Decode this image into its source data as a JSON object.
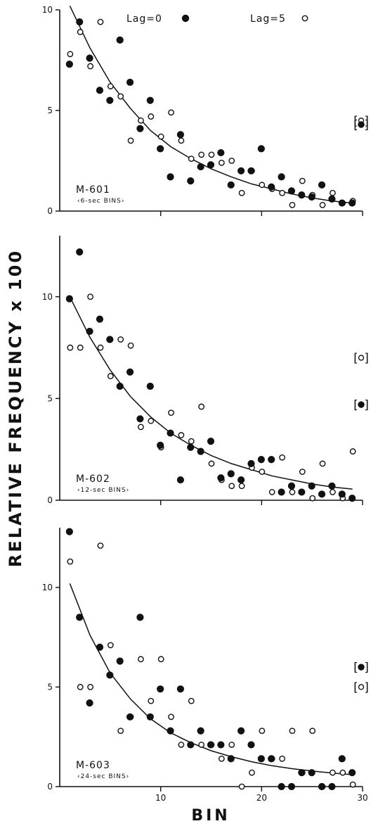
{
  "chart_data": {
    "type": "scatter",
    "ylabel": "RELATIVE FREQUENCY x 100",
    "xlabel": "BIN",
    "legend": [
      {
        "label": "Lag=0",
        "marker": "filled-circle"
      },
      {
        "label": "Lag=5",
        "marker": "open-circle"
      }
    ],
    "x_ticks": [
      "10",
      "20",
      "30"
    ],
    "xlim": [
      0,
      30
    ],
    "panels": [
      {
        "label": "M-601",
        "sublabel": "‹6-sec BINS›",
        "ylim": [
          0,
          10
        ],
        "y_ticks": [
          "0",
          "5",
          "10"
        ],
        "side_marker": {
          "bracket_text": "[°]",
          "open": 4.5,
          "filled": 4.3
        },
        "lag0": [
          [
            1,
            7.3
          ],
          [
            2,
            9.4
          ],
          [
            3,
            7.6
          ],
          [
            4,
            6.0
          ],
          [
            5,
            5.5
          ],
          [
            6,
            8.5
          ],
          [
            7,
            6.4
          ],
          [
            8,
            4.1
          ],
          [
            9,
            5.5
          ],
          [
            10,
            3.1
          ],
          [
            11,
            1.7
          ],
          [
            12,
            3.8
          ],
          [
            13,
            1.5
          ],
          [
            14,
            2.2
          ],
          [
            15,
            2.3
          ],
          [
            16,
            2.9
          ],
          [
            17,
            1.3
          ],
          [
            18,
            2.0
          ],
          [
            19,
            2.0
          ],
          [
            20,
            3.1
          ],
          [
            21,
            1.2
          ],
          [
            22,
            1.7
          ],
          [
            23,
            1.0
          ],
          [
            24,
            0.8
          ],
          [
            25,
            0.7
          ],
          [
            26,
            1.3
          ],
          [
            27,
            0.6
          ],
          [
            28,
            0.4
          ],
          [
            29,
            0.4
          ]
        ],
        "lag5": [
          [
            1,
            7.8
          ],
          [
            2,
            8.9
          ],
          [
            3,
            7.2
          ],
          [
            4,
            9.4
          ],
          [
            5,
            6.2
          ],
          [
            6,
            5.7
          ],
          [
            7,
            3.5
          ],
          [
            8,
            4.5
          ],
          [
            9,
            4.7
          ],
          [
            10,
            3.7
          ],
          [
            11,
            4.9
          ],
          [
            12,
            3.5
          ],
          [
            13,
            2.6
          ],
          [
            14,
            2.8
          ],
          [
            15,
            2.8
          ],
          [
            16,
            2.4
          ],
          [
            17,
            2.5
          ],
          [
            18,
            0.9
          ],
          [
            19,
            2.0
          ],
          [
            20,
            1.3
          ],
          [
            21,
            1.1
          ],
          [
            22,
            0.9
          ],
          [
            23,
            0.3
          ],
          [
            24,
            1.5
          ],
          [
            25,
            0.8
          ],
          [
            26,
            0.3
          ],
          [
            27,
            0.9
          ],
          [
            28,
            0.4
          ],
          [
            29,
            0.5
          ]
        ],
        "fit": [
          [
            1,
            10.2
          ],
          [
            3,
            8.1
          ],
          [
            5,
            6.4
          ],
          [
            7,
            5.1
          ],
          [
            9,
            4.0
          ],
          [
            11,
            3.2
          ],
          [
            13,
            2.6
          ],
          [
            15,
            2.1
          ],
          [
            17,
            1.7
          ],
          [
            19,
            1.35
          ],
          [
            21,
            1.1
          ],
          [
            23,
            0.85
          ],
          [
            25,
            0.65
          ],
          [
            27,
            0.5
          ],
          [
            29,
            0.4
          ]
        ]
      },
      {
        "label": "M-602",
        "sublabel": "‹12-sec BINS›",
        "ylim": [
          0,
          13
        ],
        "y_ticks": [
          "0",
          "5",
          "10"
        ],
        "side_marker": {
          "bracket_text": "[°]",
          "open": 7.0,
          "filled": 4.7
        },
        "lag0": [
          [
            1,
            9.9
          ],
          [
            2,
            12.2
          ],
          [
            3,
            8.3
          ],
          [
            4,
            8.9
          ],
          [
            5,
            7.9
          ],
          [
            6,
            5.6
          ],
          [
            7,
            6.3
          ],
          [
            8,
            4.0
          ],
          [
            9,
            5.6
          ],
          [
            10,
            2.7
          ],
          [
            11,
            3.3
          ],
          [
            12,
            1.0
          ],
          [
            13,
            2.6
          ],
          [
            14,
            2.4
          ],
          [
            15,
            2.9
          ],
          [
            16,
            1.1
          ],
          [
            17,
            1.3
          ],
          [
            18,
            1.0
          ],
          [
            19,
            1.8
          ],
          [
            20,
            2.0
          ],
          [
            21,
            2.0
          ],
          [
            22,
            0.4
          ],
          [
            23,
            0.7
          ],
          [
            24,
            0.4
          ],
          [
            25,
            0.7
          ],
          [
            26,
            0.3
          ],
          [
            27,
            0.7
          ],
          [
            28,
            0.3
          ],
          [
            29,
            0.1
          ]
        ],
        "lag5": [
          [
            1,
            7.5
          ],
          [
            2,
            7.5
          ],
          [
            3,
            10.0
          ],
          [
            4,
            7.5
          ],
          [
            5,
            6.1
          ],
          [
            6,
            7.9
          ],
          [
            7,
            7.6
          ],
          [
            8,
            3.6
          ],
          [
            9,
            3.9
          ],
          [
            10,
            2.6
          ],
          [
            11,
            4.3
          ],
          [
            12,
            3.2
          ],
          [
            13,
            2.9
          ],
          [
            14,
            4.6
          ],
          [
            15,
            1.8
          ],
          [
            16,
            1.0
          ],
          [
            17,
            0.7
          ],
          [
            18,
            0.7
          ],
          [
            19,
            1.6
          ],
          [
            20,
            1.4
          ],
          [
            21,
            0.4
          ],
          [
            22,
            2.1
          ],
          [
            23,
            0.4
          ],
          [
            24,
            1.4
          ],
          [
            25,
            0.1
          ],
          [
            26,
            1.8
          ],
          [
            27,
            0.4
          ],
          [
            28,
            0.1
          ],
          [
            29,
            2.4
          ]
        ],
        "fit": [
          [
            1,
            10.0
          ],
          [
            3,
            8.0
          ],
          [
            5,
            6.4
          ],
          [
            7,
            5.1
          ],
          [
            9,
            4.1
          ],
          [
            11,
            3.3
          ],
          [
            13,
            2.7
          ],
          [
            15,
            2.2
          ],
          [
            17,
            1.8
          ],
          [
            19,
            1.5
          ],
          [
            21,
            1.2
          ],
          [
            23,
            1.0
          ],
          [
            25,
            0.8
          ],
          [
            27,
            0.65
          ],
          [
            29,
            0.55
          ]
        ]
      },
      {
        "label": "M-603",
        "sublabel": "‹24-sec BINS›",
        "ylim": [
          0,
          13
        ],
        "y_ticks": [
          "0",
          "5",
          "10"
        ],
        "side_marker": {
          "bracket_text": "[°]",
          "open": 5.0,
          "filled": 6.0
        },
        "lag0": [
          [
            1,
            12.8
          ],
          [
            2,
            8.5
          ],
          [
            3,
            4.2
          ],
          [
            4,
            7.0
          ],
          [
            5,
            5.6
          ],
          [
            6,
            6.3
          ],
          [
            7,
            3.5
          ],
          [
            8,
            8.5
          ],
          [
            9,
            3.5
          ],
          [
            10,
            4.9
          ],
          [
            11,
            2.8
          ],
          [
            12,
            4.9
          ],
          [
            13,
            2.1
          ],
          [
            14,
            2.8
          ],
          [
            15,
            2.1
          ],
          [
            16,
            2.1
          ],
          [
            17,
            1.4
          ],
          [
            18,
            2.8
          ],
          [
            19,
            2.1
          ],
          [
            20,
            1.4
          ],
          [
            21,
            1.4
          ],
          [
            22,
            0.0
          ],
          [
            23,
            0.0
          ],
          [
            24,
            0.7
          ],
          [
            25,
            0.7
          ],
          [
            26,
            0.0
          ],
          [
            27,
            0.0
          ],
          [
            28,
            1.4
          ],
          [
            29,
            0.7
          ]
        ],
        "lag5": [
          [
            1,
            11.3
          ],
          [
            2,
            5.0
          ],
          [
            3,
            5.0
          ],
          [
            4,
            12.1
          ],
          [
            5,
            7.1
          ],
          [
            6,
            2.8
          ],
          [
            7,
            3.5
          ],
          [
            8,
            6.4
          ],
          [
            9,
            4.3
          ],
          [
            10,
            6.4
          ],
          [
            11,
            3.5
          ],
          [
            12,
            2.1
          ],
          [
            13,
            4.3
          ],
          [
            14,
            2.1
          ],
          [
            15,
            2.1
          ],
          [
            16,
            1.4
          ],
          [
            17,
            2.1
          ],
          [
            18,
            0.0
          ],
          [
            19,
            0.7
          ],
          [
            20,
            2.8
          ],
          [
            21,
            1.4
          ],
          [
            22,
            1.4
          ],
          [
            23,
            2.8
          ],
          [
            24,
            0.7
          ],
          [
            25,
            2.8
          ],
          [
            26,
            0.0
          ],
          [
            27,
            0.7
          ],
          [
            28,
            0.7
          ],
          [
            29,
            0.1
          ]
        ],
        "fit": [
          [
            1,
            10.2
          ],
          [
            3,
            7.6
          ],
          [
            5,
            5.7
          ],
          [
            7,
            4.4
          ],
          [
            9,
            3.4
          ],
          [
            11,
            2.7
          ],
          [
            13,
            2.2
          ],
          [
            15,
            1.8
          ],
          [
            17,
            1.5
          ],
          [
            19,
            1.25
          ],
          [
            21,
            1.05
          ],
          [
            23,
            0.9
          ],
          [
            25,
            0.78
          ],
          [
            27,
            0.68
          ],
          [
            29,
            0.6
          ]
        ]
      }
    ]
  }
}
